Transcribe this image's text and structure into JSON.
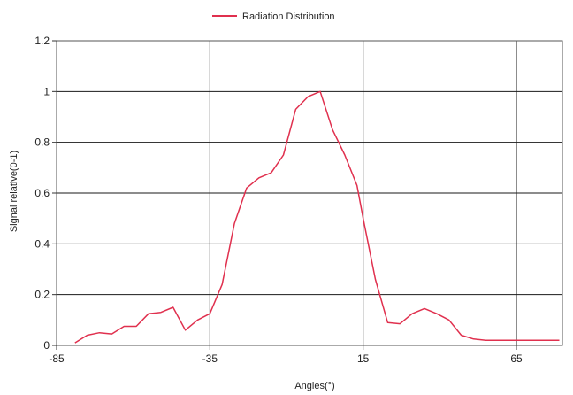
{
  "chart_data": {
    "type": "line",
    "title": "",
    "xlabel": "Angles(°)",
    "ylabel": "Signal relative(0-1)",
    "xlim": [
      -85,
      80
    ],
    "ylim": [
      0,
      1.2
    ],
    "x_ticks": [
      -85,
      -35,
      15,
      65
    ],
    "y_ticks": [
      0,
      0.2,
      0.4,
      0.6,
      0.8,
      1,
      1.2
    ],
    "x_tick_labels": [
      "-85",
      "-35",
      "15",
      "65"
    ],
    "y_tick_labels": [
      "0",
      "0.2",
      "0.4",
      "0.6",
      "0.8",
      "1",
      "1.2"
    ],
    "grid": true,
    "legend": "top-center",
    "series": [
      {
        "name": "Radiation Distribution",
        "color": "#e0304e",
        "x": [
          -79,
          -75,
          -71,
          -67,
          -63,
          -59,
          -55,
          -51,
          -47,
          -43,
          -39,
          -35,
          -31,
          -27,
          -23,
          -19,
          -15,
          -11,
          -7,
          -3,
          1,
          5,
          9,
          13,
          15,
          19,
          23,
          27,
          31,
          35,
          39,
          43,
          47,
          51,
          55,
          59,
          63,
          67,
          71,
          75,
          79
        ],
        "y": [
          0.01,
          0.04,
          0.05,
          0.045,
          0.075,
          0.075,
          0.125,
          0.13,
          0.15,
          0.06,
          0.1,
          0.125,
          0.24,
          0.48,
          0.62,
          0.66,
          0.68,
          0.75,
          0.93,
          0.98,
          1.0,
          0.85,
          0.75,
          0.63,
          0.5,
          0.26,
          0.09,
          0.085,
          0.125,
          0.145,
          0.125,
          0.1,
          0.04,
          0.025,
          0.02,
          0.02,
          0.02,
          0.02,
          0.02,
          0.02,
          0.02
        ]
      }
    ]
  }
}
